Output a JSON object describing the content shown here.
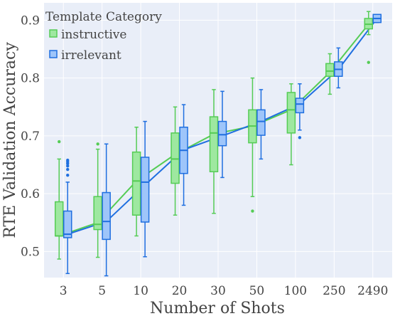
{
  "chart_data": {
    "type": "box",
    "xlabel": "Number of Shots",
    "ylabel": "RTE Validation Accuracy",
    "categories": [
      "3",
      "5",
      "10",
      "20",
      "30",
      "50",
      "100",
      "250",
      "2490"
    ],
    "ylim": [
      0.455,
      0.93
    ],
    "yticks": [
      0.5,
      0.6,
      0.7,
      0.8,
      0.9
    ],
    "grid": true,
    "legend": {
      "title": "Template Category",
      "position": "top-left"
    },
    "colors": {
      "background": "#e9eef8",
      "instructive_fill": "#9ee8a0",
      "instructive_line": "#55cc55",
      "irrelevant_fill": "#9ec5fa",
      "irrelevant_line": "#1f6fe0"
    },
    "series": [
      {
        "name": "instructive",
        "boxes": [
          {
            "min": 0.487,
            "q1": 0.527,
            "median": 0.527,
            "q3": 0.586,
            "max": 0.66,
            "outliers": [
              0.69
            ]
          },
          {
            "min": 0.49,
            "q1": 0.538,
            "median": 0.547,
            "q3": 0.595,
            "max": 0.677,
            "outliers": [
              0.686
            ]
          },
          {
            "min": 0.527,
            "q1": 0.563,
            "median": 0.622,
            "q3": 0.672,
            "max": 0.715,
            "outliers": []
          },
          {
            "min": 0.563,
            "q1": 0.618,
            "median": 0.66,
            "q3": 0.705,
            "max": 0.75,
            "outliers": []
          },
          {
            "min": 0.566,
            "q1": 0.638,
            "median": 0.705,
            "q3": 0.733,
            "max": 0.78,
            "outliers": []
          },
          {
            "min": 0.595,
            "q1": 0.688,
            "median": 0.717,
            "q3": 0.745,
            "max": 0.8,
            "outliers": [
              0.57
            ]
          },
          {
            "min": 0.65,
            "q1": 0.705,
            "median": 0.745,
            "q3": 0.775,
            "max": 0.79,
            "outliers": []
          },
          {
            "min": 0.772,
            "q1": 0.803,
            "median": 0.812,
            "q3": 0.825,
            "max": 0.842,
            "outliers": []
          },
          {
            "min": 0.875,
            "q1": 0.885,
            "median": 0.893,
            "q3": 0.903,
            "max": 0.915,
            "outliers": [
              0.827
            ]
          }
        ],
        "trend": [
          0.527,
          0.55,
          0.622,
          0.668,
          0.703,
          0.717,
          0.745,
          0.81,
          0.893
        ]
      },
      {
        "name": "irrelevant",
        "boxes": [
          {
            "min": 0.462,
            "q1": 0.524,
            "median": 0.53,
            "q3": 0.57,
            "max": 0.62,
            "outliers": [
              0.632,
              0.642,
              0.648,
              0.652,
              0.655,
              0.658
            ]
          },
          {
            "min": 0.458,
            "q1": 0.521,
            "median": 0.552,
            "q3": 0.602,
            "max": 0.686,
            "outliers": []
          },
          {
            "min": 0.491,
            "q1": 0.551,
            "median": 0.62,
            "q3": 0.663,
            "max": 0.725,
            "outliers": []
          },
          {
            "min": 0.58,
            "q1": 0.635,
            "median": 0.675,
            "q3": 0.715,
            "max": 0.754,
            "outliers": []
          },
          {
            "min": 0.628,
            "q1": 0.683,
            "median": 0.702,
            "q3": 0.725,
            "max": 0.777,
            "outliers": []
          },
          {
            "min": 0.66,
            "q1": 0.701,
            "median": 0.725,
            "q3": 0.745,
            "max": 0.78,
            "outliers": []
          },
          {
            "min": 0.71,
            "q1": 0.74,
            "median": 0.755,
            "q3": 0.765,
            "max": 0.79,
            "outliers": [
              0.697
            ]
          },
          {
            "min": 0.783,
            "q1": 0.803,
            "median": 0.815,
            "q3": 0.828,
            "max": 0.852,
            "outliers": []
          },
          {
            "min": 0.896,
            "q1": 0.896,
            "median": 0.903,
            "q3": 0.91,
            "max": 0.91,
            "outliers": []
          }
        ],
        "trend": [
          0.53,
          0.552,
          0.615,
          0.676,
          0.7,
          0.725,
          0.755,
          0.815,
          0.903
        ]
      }
    ]
  }
}
